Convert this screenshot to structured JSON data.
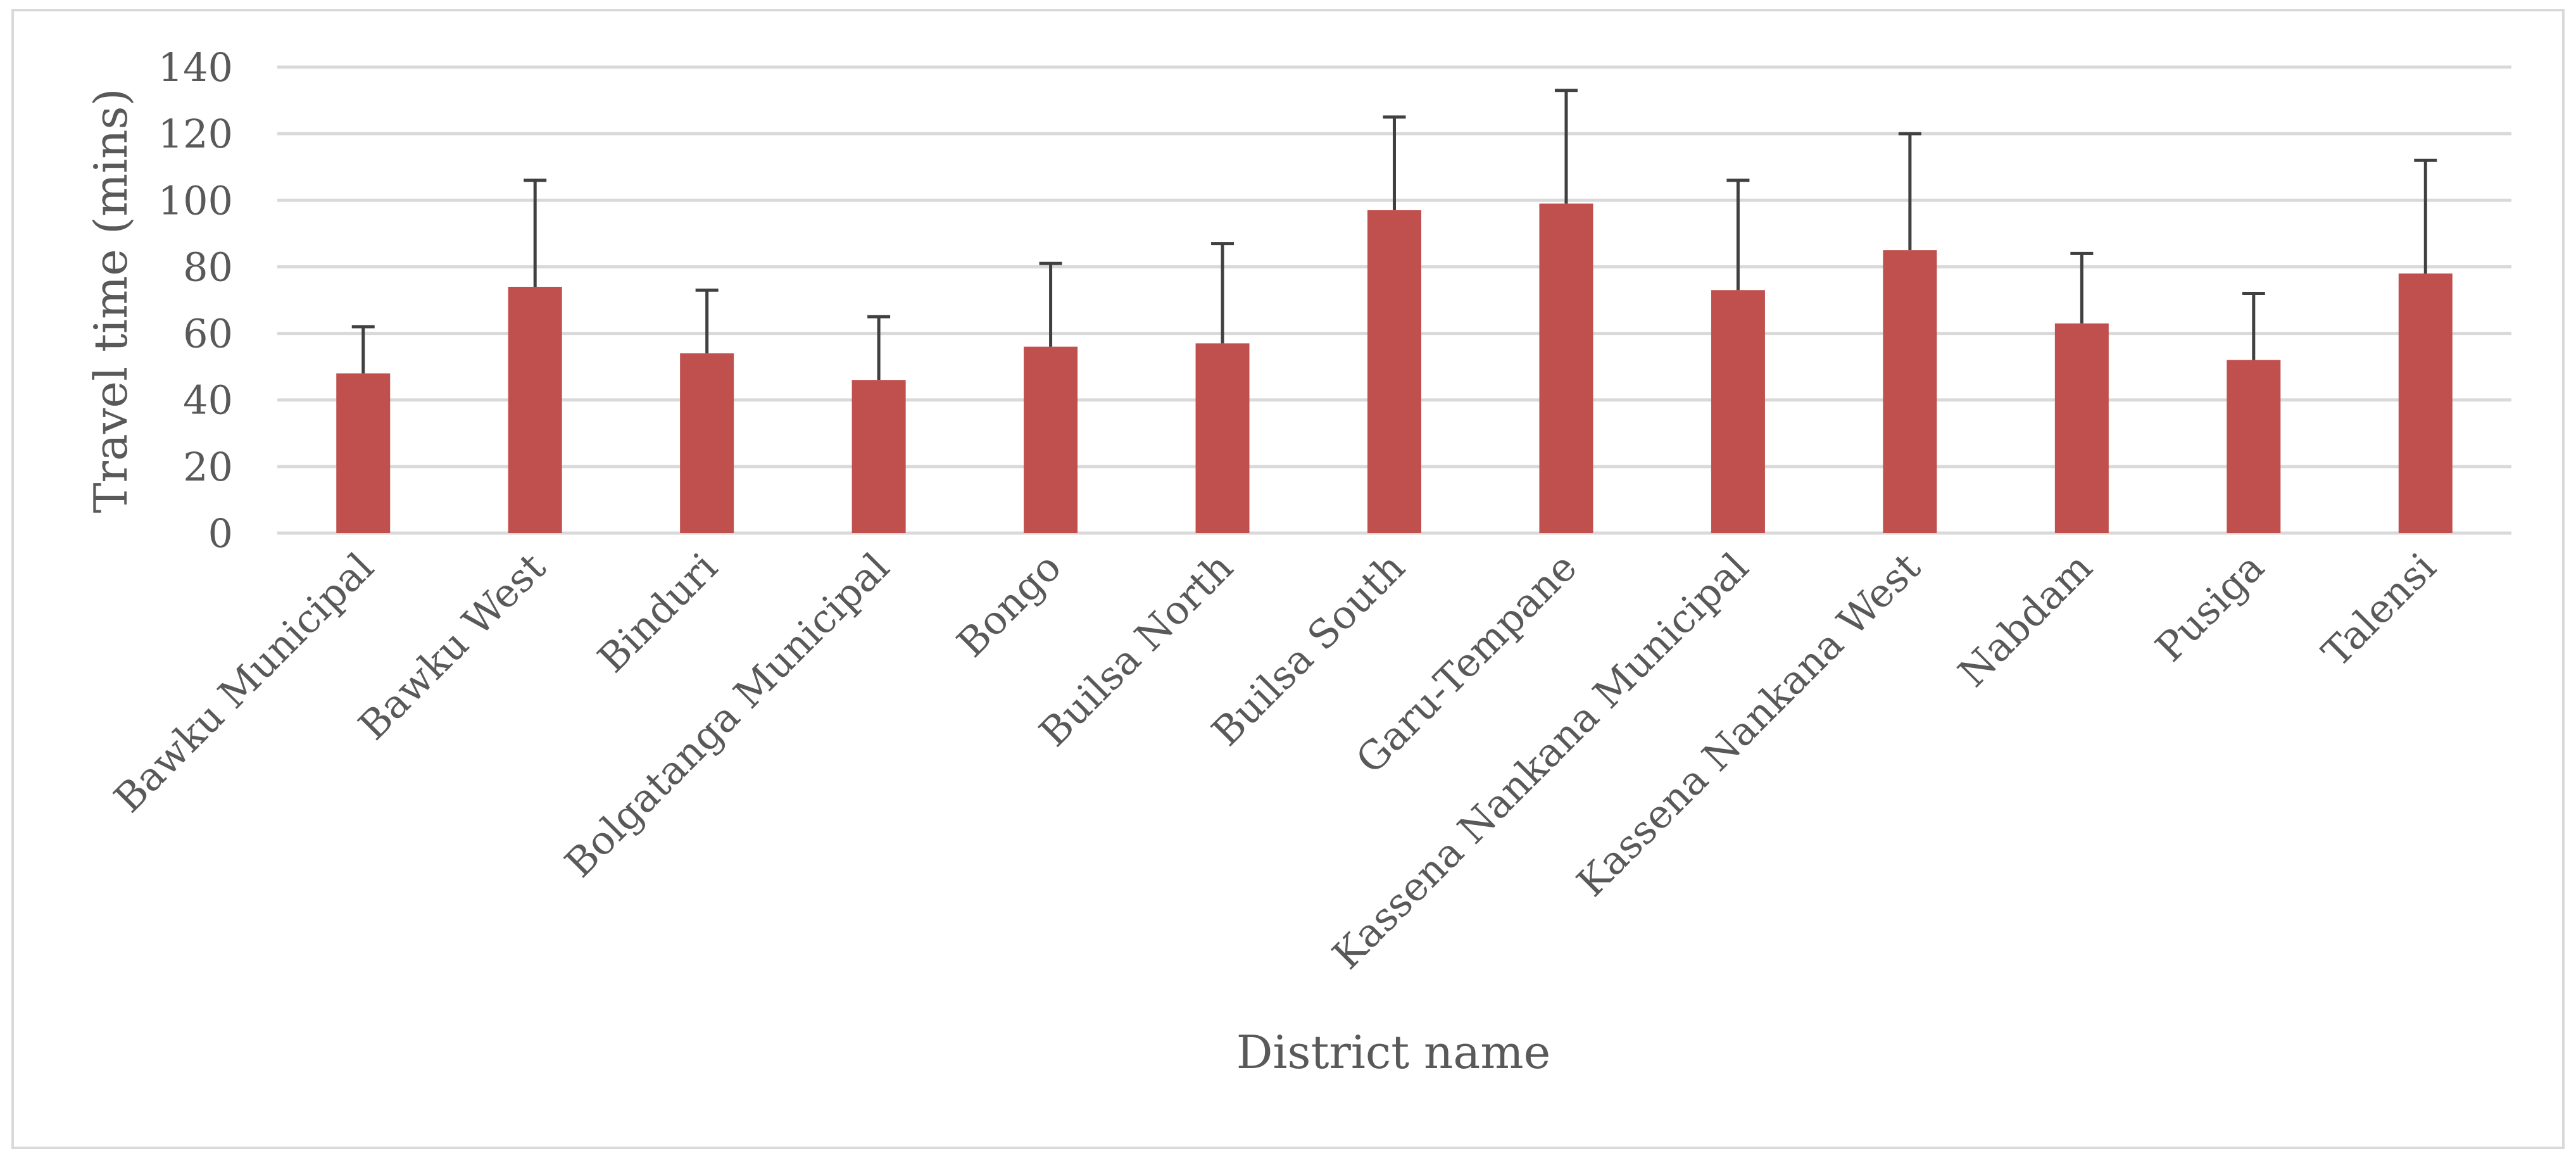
{
  "chart_data": {
    "type": "bar",
    "title": "",
    "xlabel": "District name",
    "ylabel": "Travel time (mins)",
    "ylim": [
      0,
      140
    ],
    "yticks": [
      0,
      20,
      40,
      60,
      80,
      100,
      120,
      140
    ],
    "grid": true,
    "legend": "none",
    "bar_color": "#c0504d",
    "categories": [
      "Bawku Municipal",
      "Bawku West",
      "Binduri",
      "Bolgatanga Municipal",
      "Bongo",
      "Builsa North",
      "Builsa South",
      "Garu-Tempane",
      "Kassena Nankana Municipal",
      "Kassena Nankana West",
      "Nabdam",
      "Pusiga",
      "Talensi"
    ],
    "values": [
      48,
      74,
      54,
      46,
      56,
      57,
      97,
      99,
      73,
      85,
      63,
      52,
      78
    ],
    "error_upper": [
      62,
      106,
      73,
      65,
      81,
      87,
      125,
      133,
      106,
      120,
      84,
      72,
      112
    ]
  }
}
